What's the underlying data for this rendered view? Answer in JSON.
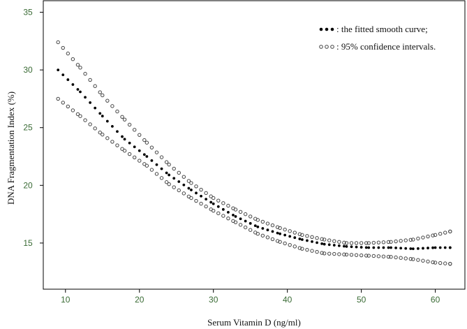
{
  "chart_data": {
    "type": "scatter",
    "title": "",
    "xlabel": "Serum Vitamin D  (ng/ml)",
    "ylabel": "DNA Fragmentation Index (%)",
    "xlim": [
      7,
      64
    ],
    "ylim": [
      11,
      36
    ],
    "x_ticks": [
      10,
      20,
      30,
      40,
      50,
      60
    ],
    "y_ticks": [
      15,
      20,
      25,
      30,
      35
    ],
    "grid": false,
    "legend": {
      "placement": "top-right",
      "entries": [
        {
          "marker": "●●●",
          "label": ": the fitted smooth curve;"
        },
        {
          "marker": "○○○",
          "label": ": 95% confidence intervals."
        }
      ]
    },
    "colors": {
      "axis": "#000000",
      "tick_label": "#3a6b35",
      "fitted": "#000000",
      "ci": "#444444"
    },
    "series": [
      {
        "style": "filled",
        "x": [
          9,
          12,
          15,
          18,
          21,
          24,
          27,
          30,
          33,
          36,
          39,
          42,
          45,
          48,
          51,
          54,
          57,
          60,
          62
        ],
        "y": [
          30.0,
          28.1,
          26.0,
          24.0,
          22.5,
          20.9,
          19.6,
          18.4,
          17.3,
          16.4,
          15.8,
          15.3,
          14.9,
          14.7,
          14.6,
          14.6,
          14.5,
          14.6,
          14.6
        ]
      },
      {
        "style": "open",
        "x": [
          9,
          12,
          15,
          18,
          21,
          24,
          27,
          30,
          33,
          36,
          39,
          42,
          45,
          48,
          51,
          54,
          57,
          60,
          62
        ],
        "y": [
          32.4,
          30.2,
          27.8,
          25.7,
          23.7,
          21.8,
          20.2,
          18.9,
          17.9,
          17.0,
          16.3,
          15.7,
          15.3,
          15.0,
          15.0,
          15.1,
          15.3,
          15.7,
          16.0
        ]
      },
      {
        "style": "open",
        "x": [
          9,
          12,
          15,
          18,
          21,
          24,
          27,
          30,
          33,
          36,
          39,
          42,
          45,
          48,
          51,
          54,
          57,
          60,
          62
        ],
        "y": [
          27.5,
          26.0,
          24.4,
          23.0,
          21.7,
          20.1,
          18.9,
          17.8,
          16.8,
          15.8,
          15.1,
          14.5,
          14.1,
          14.0,
          13.9,
          13.8,
          13.6,
          13.3,
          13.2
        ]
      }
    ]
  }
}
